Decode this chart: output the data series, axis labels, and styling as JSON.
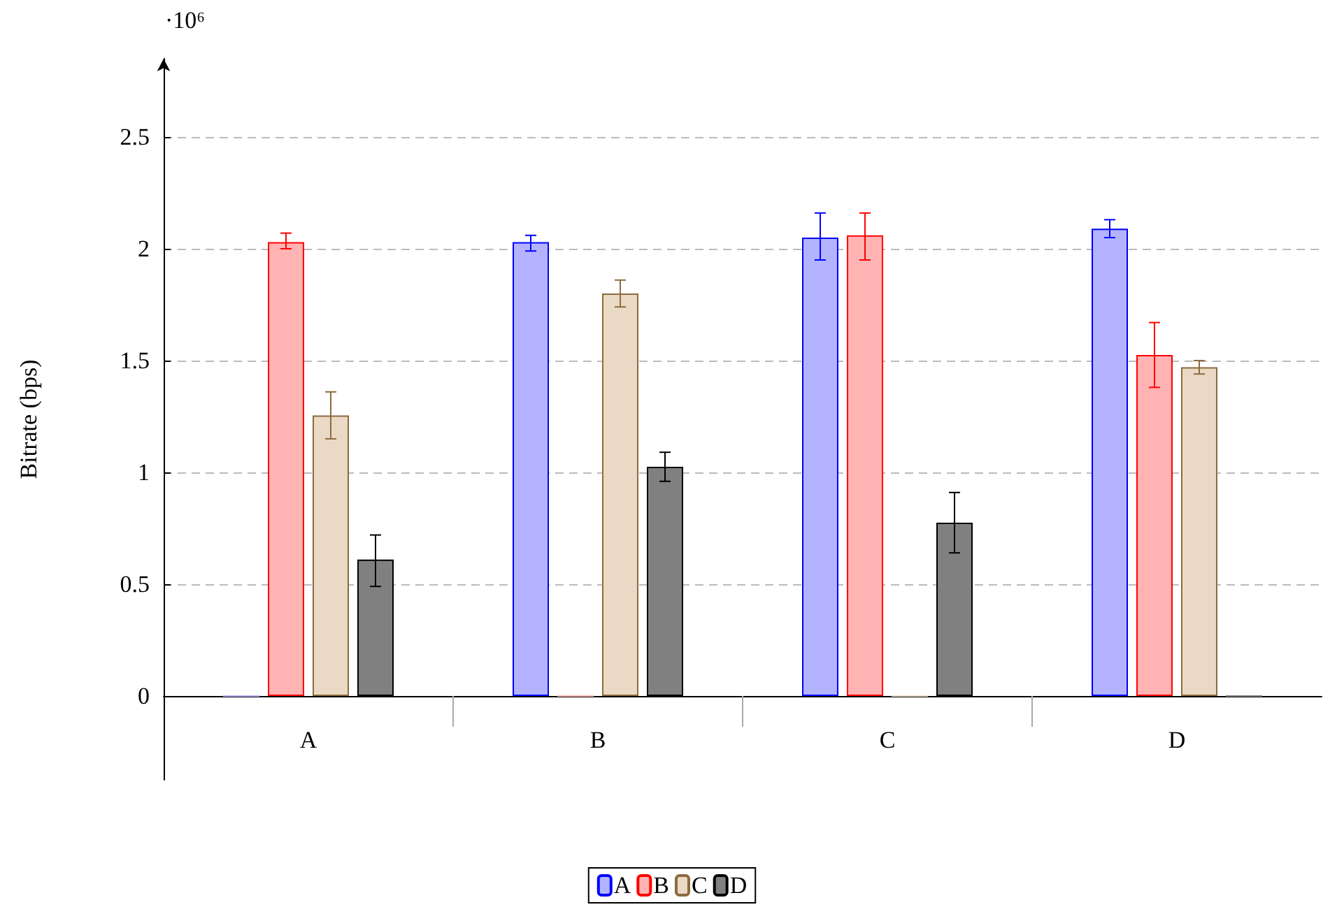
{
  "chart_data": {
    "type": "bar",
    "ylabel": "Bitrate (bps)",
    "annotations": [
      "·10⁶"
    ],
    "categories": [
      "A",
      "B",
      "C",
      "D"
    ],
    "series": [
      {
        "name": "A",
        "color": "#b3b3ff",
        "values": [
          0,
          2.03,
          2.05,
          2.09
        ],
        "errors": [
          null,
          [
            1.99,
            2.06
          ],
          [
            1.95,
            2.16
          ],
          [
            2.05,
            2.13
          ]
        ]
      },
      {
        "name": "B",
        "color": "#ffb3b3",
        "values": [
          2.03,
          0,
          2.06,
          1.525
        ],
        "errors": [
          [
            2.0,
            2.07
          ],
          null,
          [
            1.95,
            2.16
          ],
          [
            1.38,
            1.67
          ]
        ]
      },
      {
        "name": "C",
        "color": "#ead9c4",
        "values": [
          1.255,
          1.8,
          0,
          1.47
        ],
        "errors": [
          [
            1.15,
            1.36
          ],
          [
            1.74,
            1.86
          ],
          null,
          [
            1.44,
            1.5
          ]
        ]
      },
      {
        "name": "D",
        "color": "#808080",
        "values": [
          0.61,
          1.025,
          0.775,
          0
        ],
        "errors": [
          [
            0.49,
            0.72
          ],
          [
            0.96,
            1.09
          ],
          [
            0.64,
            0.91
          ],
          null
        ]
      }
    ],
    "ylim": [
      -0.375,
      2.85
    ],
    "yticks": [
      0,
      0.5,
      1,
      1.5,
      2,
      2.5
    ],
    "grid": "y",
    "legend": "bottom"
  }
}
